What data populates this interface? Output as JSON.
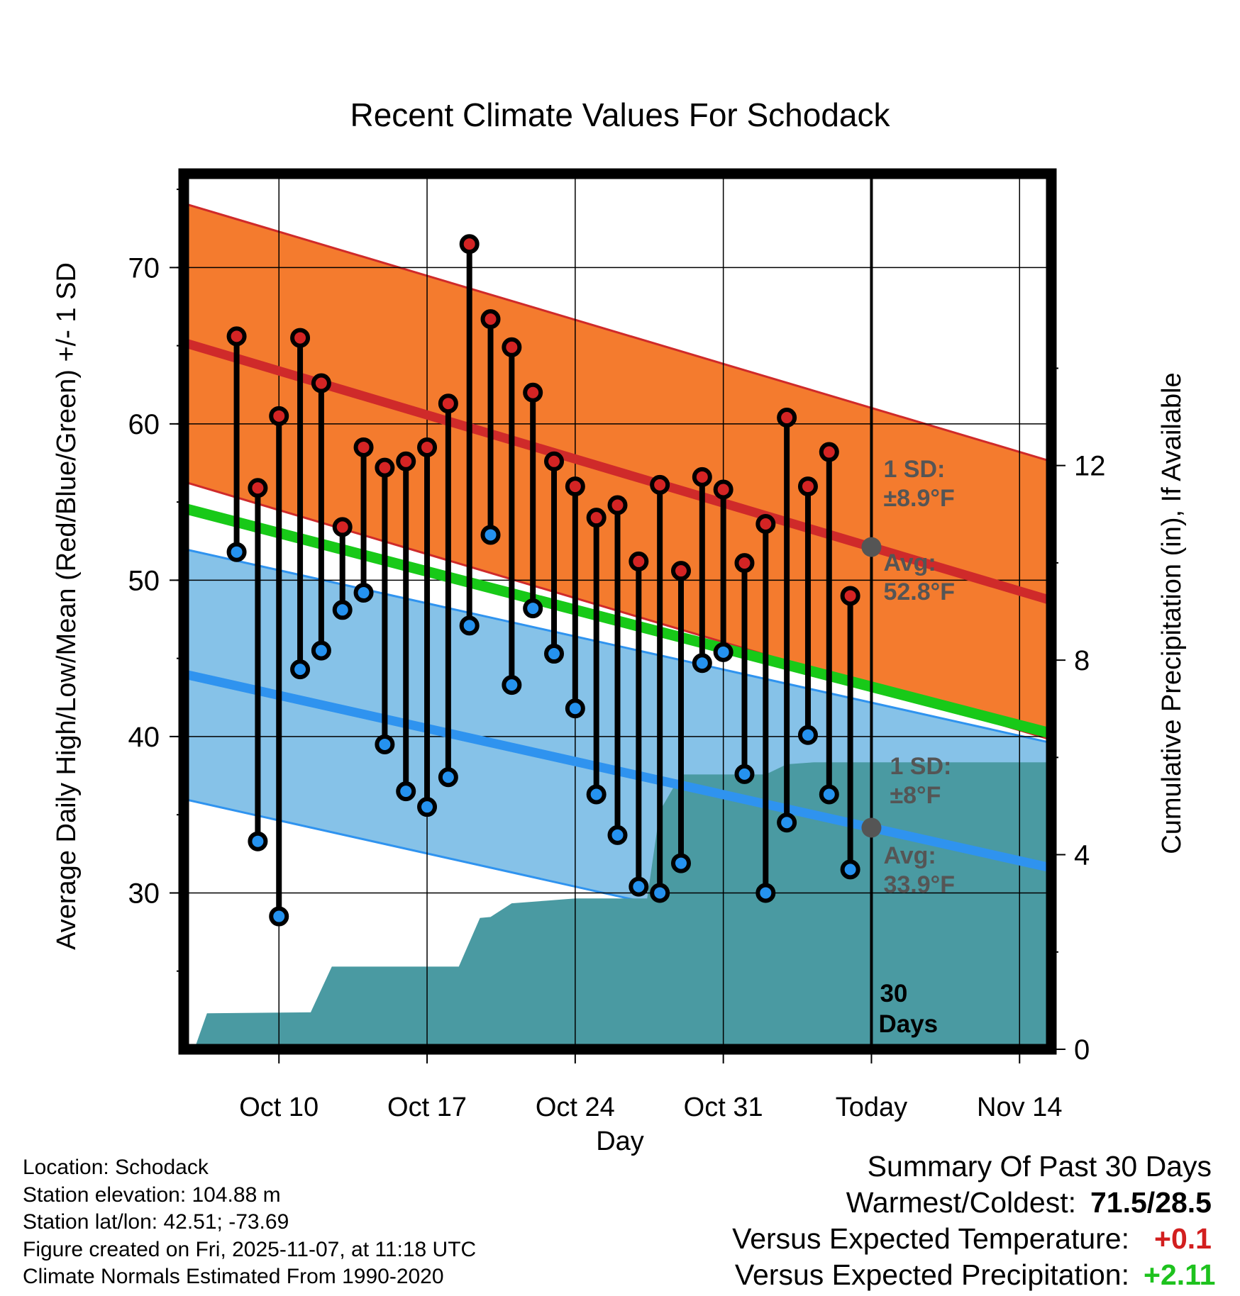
{
  "chart_data": {
    "type": "lollipop-range",
    "title": "Recent Climate Values For Schodack",
    "xlabel": "Day",
    "ylabel": "Average Daily High/Low/Mean (Red/Blue/Green) +/- 1 SD",
    "y2label": "Cumulative Precipitation (in), If Available",
    "ylim": [
      20,
      76
    ],
    "y2lim": [
      0,
      18
    ],
    "xlim_days": [
      -31.5,
      9.5
    ],
    "x_ticks": [
      {
        "day": -27,
        "label": "Oct 10"
      },
      {
        "day": -20,
        "label": "Oct 17"
      },
      {
        "day": -13,
        "label": "Oct 24"
      },
      {
        "day": -6,
        "label": "Oct 31"
      },
      {
        "day": 1,
        "label": "Today"
      },
      {
        "day": 8,
        "label": "Nov 14"
      }
    ],
    "y_ticks": [
      30,
      40,
      50,
      60,
      70
    ],
    "y2_ticks": [
      0,
      4,
      8,
      12
    ],
    "days_start": -29,
    "highs": [
      65.6,
      55.9,
      60.5,
      65.5,
      62.6,
      53.4,
      58.5,
      57.2,
      57.6,
      58.5,
      61.3,
      71.5,
      66.7,
      64.9,
      62.0,
      57.6,
      56.0,
      54.0,
      54.8,
      51.2,
      56.1,
      50.6,
      56.6,
      55.8,
      51.1,
      53.6,
      60.4,
      56.0,
      58.2,
      49.0
    ],
    "lows": [
      51.8,
      33.3,
      28.5,
      44.3,
      45.5,
      48.1,
      49.2,
      39.5,
      36.5,
      35.5,
      37.4,
      47.1,
      52.9,
      43.3,
      48.2,
      45.3,
      41.8,
      36.3,
      33.7,
      30.4,
      30.0,
      31.9,
      44.7,
      45.4,
      37.6,
      30.0,
      34.5,
      40.1,
      36.3,
      31.5
    ],
    "normals": {
      "high_start": 65.2,
      "high_end": 48.7,
      "high_sd": 8.9,
      "low_start": 44.0,
      "low_end": 31.6,
      "low_sd": 8.0,
      "mean_start": 54.6,
      "mean_end": 40.2
    },
    "precip_cumulative": [
      {
        "day": -31,
        "in": 0.0
      },
      {
        "day": -30.4,
        "in": 0.74
      },
      {
        "day": -25.5,
        "in": 0.76
      },
      {
        "day": -24.5,
        "in": 1.7
      },
      {
        "day": -18.5,
        "in": 1.7
      },
      {
        "day": -17.5,
        "in": 2.7
      },
      {
        "day": -17,
        "in": 2.72
      },
      {
        "day": -16,
        "in": 3.0
      },
      {
        "day": -13,
        "in": 3.1
      },
      {
        "day": -9.6,
        "in": 3.1
      },
      {
        "day": -9.0,
        "in": 4.9
      },
      {
        "day": -8.0,
        "in": 5.65
      },
      {
        "day": -4,
        "in": 5.65
      },
      {
        "day": -3,
        "in": 5.86
      },
      {
        "day": -1.7,
        "in": 5.9
      },
      {
        "day": 9.5,
        "in": 5.9
      }
    ],
    "annotations": {
      "high_sd": {
        "title": "1 SD:",
        "value": "±8.9°F"
      },
      "high_avg": {
        "title": "Avg:",
        "value": "52.8°F"
      },
      "low_sd": {
        "title": "1 SD:",
        "value": "±8°F"
      },
      "low_avg": {
        "title": "Avg:",
        "value": "33.9°F"
      },
      "days": {
        "line1": "30",
        "line2": "Days"
      }
    },
    "colors": {
      "high_band": "#f47b2e",
      "high_line": "#cf2a2a",
      "low_band": "#86c2e8",
      "low_line": "#2f93ef",
      "mean_line": "#18c918",
      "precip": "#4a9aa2",
      "high_dot": "#d42424",
      "low_dot": "#2592ef",
      "marker_gray": "#555555"
    }
  },
  "info": {
    "location": "Location: Schodack",
    "elevation": "Station elevation: 104.88 m",
    "latlon": "Station lat/lon: 42.51; -73.69",
    "created": "Figure created on Fri, 2025-11-07, at 11:18 UTC",
    "normals": "Climate Normals Estimated From 1990-2020"
  },
  "summary": {
    "title": "Summary Of Past 30 Days",
    "warm_cold_label": "Warmest/Coldest:",
    "warm_cold_value": "71.5/28.5",
    "temp_label": "Versus Expected Temperature:",
    "temp_value": "+0.1",
    "precip_label": "Versus Expected Precipitation:",
    "precip_value": "+2.11"
  }
}
